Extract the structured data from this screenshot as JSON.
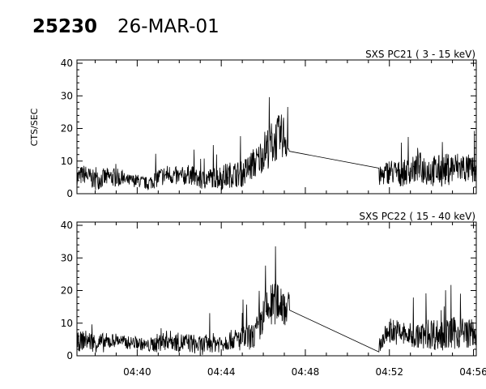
{
  "header": {
    "id": "25230",
    "date": "26-MAR-01"
  },
  "chart_data": [
    {
      "type": "line",
      "title": "SXS PC21  (  3 - 15 keV)",
      "ylabel": "CTS/SEC",
      "xlabel": "",
      "xlim": [
        "04:37:08",
        "04:56:08"
      ],
      "ylim": [
        0,
        41
      ],
      "yticks": [
        0,
        10,
        20,
        30,
        40
      ],
      "xticks": [
        "04:40",
        "04:44",
        "04:48",
        "04:52",
        "04:56"
      ],
      "show_xtick_labels": false,
      "series": [
        {
          "x": [
            "04:37:08",
            "04:37:30",
            "04:38:00",
            "04:38:30",
            "04:39:00",
            "04:39:30",
            "04:40:00",
            "04:40:30",
            "04:41:00",
            "04:41:30",
            "04:42:00",
            "04:42:30",
            "04:43:00",
            "04:43:30",
            "04:44:00",
            "04:44:30",
            "04:45:00",
            "04:45:30",
            "04:45:45",
            "04:46:00",
            "04:46:20",
            "04:46:40",
            "04:47:00",
            "04:47:15",
            "04:51:30",
            "04:52:00",
            "04:52:30",
            "04:53:00",
            "04:53:30",
            "04:54:00",
            "04:54:30",
            "04:55:00",
            "04:55:30",
            "04:56:08"
          ],
          "y": [
            5,
            6,
            4,
            5,
            5,
            4,
            4,
            3,
            5,
            6,
            5,
            6,
            4,
            5,
            5,
            6,
            6,
            9,
            10,
            13,
            15,
            17,
            18,
            13,
            5,
            7,
            6,
            7,
            8,
            7,
            7,
            8,
            8,
            7
          ],
          "noise": [
            3,
            3,
            3,
            3,
            3,
            2,
            2,
            2,
            3,
            3,
            3,
            3,
            3,
            3,
            4,
            4,
            4,
            5,
            5,
            6,
            7,
            7,
            7,
            4,
            3,
            4,
            4,
            4,
            5,
            5,
            5,
            5,
            5,
            4
          ]
        }
      ]
    },
    {
      "type": "line",
      "title": "SXS PC22  ( 15 - 40 keV)",
      "ylabel": "",
      "xlabel": "",
      "xlim": [
        "04:37:08",
        "04:56:08"
      ],
      "ylim": [
        0,
        41
      ],
      "yticks": [
        0,
        10,
        20,
        30,
        40
      ],
      "xticks": [
        "04:40",
        "04:44",
        "04:48",
        "04:52",
        "04:56"
      ],
      "show_xtick_labels": true,
      "series": [
        {
          "x": [
            "04:37:08",
            "04:37:30",
            "04:38:00",
            "04:38:30",
            "04:39:00",
            "04:39:30",
            "04:40:00",
            "04:40:30",
            "04:41:00",
            "04:41:30",
            "04:42:00",
            "04:42:30",
            "04:43:00",
            "04:43:30",
            "04:44:00",
            "04:44:30",
            "04:45:00",
            "04:45:30",
            "04:45:45",
            "04:46:00",
            "04:46:20",
            "04:46:40",
            "04:47:00",
            "04:47:15",
            "04:51:30",
            "04:52:00",
            "04:52:30",
            "04:53:00",
            "04:53:30",
            "04:54:00",
            "04:54:30",
            "04:55:00",
            "04:55:30",
            "04:56:08"
          ],
          "y": [
            4,
            5,
            4,
            4,
            5,
            4,
            4,
            3,
            4,
            5,
            4,
            4,
            3,
            4,
            4,
            5,
            5,
            6,
            8,
            12,
            15,
            17,
            16,
            14,
            3,
            8,
            7,
            6,
            6,
            7,
            6,
            7,
            7,
            7
          ],
          "noise": [
            3,
            3,
            3,
            3,
            2,
            2,
            2,
            2,
            3,
            3,
            3,
            3,
            3,
            3,
            3,
            3,
            4,
            4,
            5,
            6,
            7,
            7,
            7,
            5,
            2,
            4,
            4,
            4,
            4,
            5,
            5,
            5,
            5,
            4
          ]
        }
      ]
    }
  ]
}
